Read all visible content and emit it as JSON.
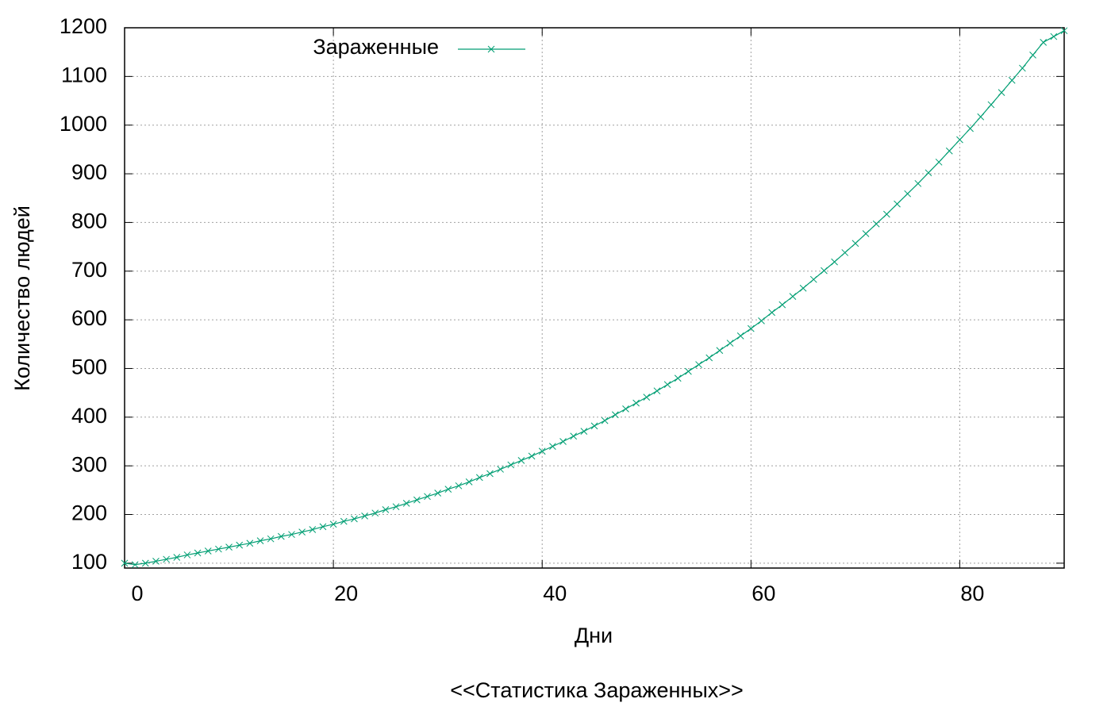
{
  "chart_data": {
    "type": "line",
    "title": "<<Статистика Зараженных>>",
    "xlabel": "Дни",
    "ylabel": "Количество людей",
    "x": [
      0,
      1,
      2,
      3,
      4,
      5,
      6,
      7,
      8,
      9,
      10,
      11,
      12,
      13,
      14,
      15,
      16,
      17,
      18,
      19,
      20,
      21,
      22,
      23,
      24,
      25,
      26,
      27,
      28,
      29,
      30,
      31,
      32,
      33,
      34,
      35,
      36,
      37,
      38,
      39,
      40,
      41,
      42,
      43,
      44,
      45,
      46,
      47,
      48,
      49,
      50,
      51,
      52,
      53,
      54,
      55,
      56,
      57,
      58,
      59,
      60,
      61,
      62,
      63,
      64,
      65,
      66,
      67,
      68,
      69,
      70,
      71,
      72,
      73,
      74,
      75,
      76,
      77,
      78,
      79,
      80,
      81,
      82,
      83,
      84,
      85,
      86,
      87,
      88,
      89,
      90
    ],
    "series": [
      {
        "name": "Зараженные",
        "color": "#009e73",
        "values": [
          100,
          97,
          100,
          104,
          108,
          112,
          117,
          121,
          125,
          129,
          133,
          137,
          141,
          146,
          150,
          155,
          159,
          164,
          169,
          175,
          180,
          186,
          191,
          197,
          203,
          210,
          216,
          223,
          230,
          237,
          244,
          252,
          259,
          267,
          276,
          284,
          293,
          302,
          311,
          320,
          330,
          340,
          350,
          361,
          371,
          382,
          393,
          405,
          417,
          429,
          441,
          454,
          467,
          480,
          494,
          508,
          522,
          537,
          552,
          567,
          582,
          598,
          615,
          631,
          648,
          665,
          683,
          701,
          719,
          738,
          757,
          777,
          797,
          817,
          838,
          859,
          880,
          902,
          924,
          947,
          970,
          993,
          1017,
          1042,
          1067,
          1092,
          1117,
          1144,
          1170,
          1182,
          1194
        ]
      }
    ],
    "xlim": [
      0,
      90
    ],
    "ylim": [
      90,
      1200
    ],
    "xticks": [
      0,
      20,
      40,
      60,
      80
    ],
    "yticks": [
      100,
      200,
      300,
      400,
      500,
      600,
      700,
      800,
      900,
      1000,
      1100,
      1200
    ],
    "grid": true,
    "legend": "top"
  }
}
